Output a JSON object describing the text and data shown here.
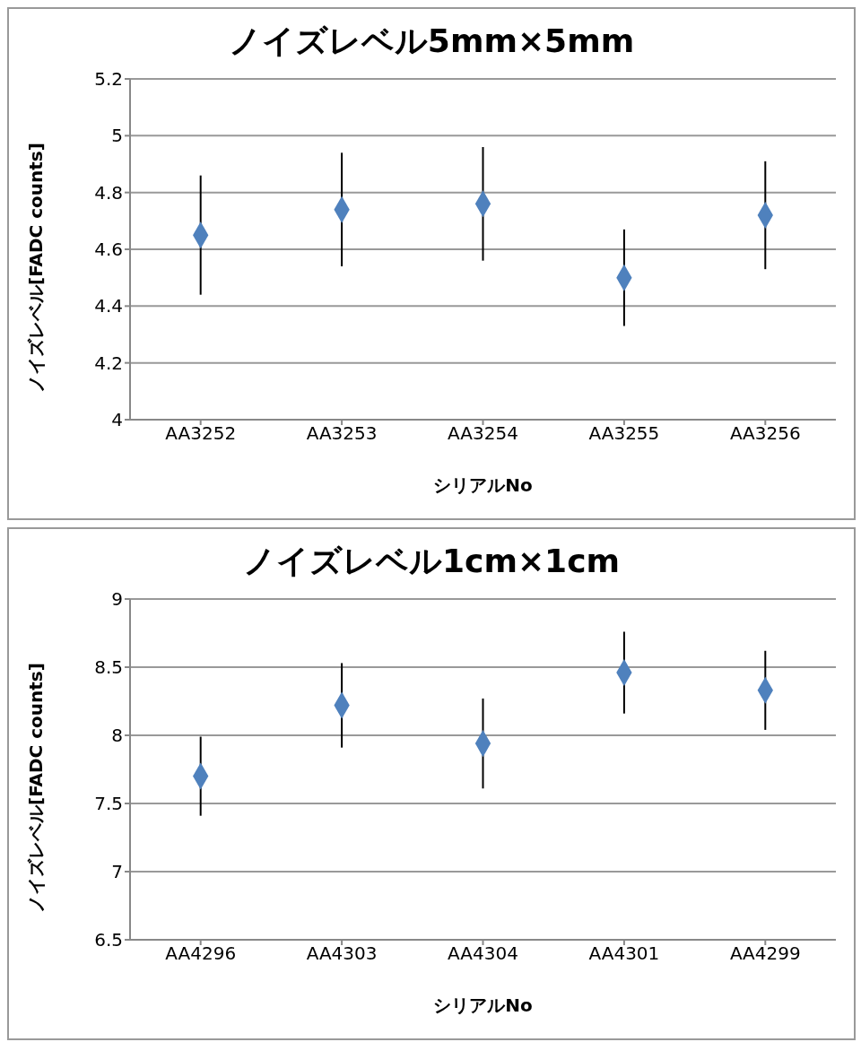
{
  "chart_data": [
    {
      "type": "scatter",
      "title": "ノイズレベル5mm×5mm",
      "xlabel": "シリアルNo",
      "ylabel": "ノイズレベル[FADC counts]",
      "categories": [
        "AA3252",
        "AA3253",
        "AA3254",
        "AA3255",
        "AA3256"
      ],
      "values": [
        4.65,
        4.74,
        4.76,
        4.5,
        4.72
      ],
      "errors": [
        0.21,
        0.2,
        0.2,
        0.17,
        0.19
      ],
      "color": "#4f81bd",
      "marker": "diamond",
      "ylim": [
        4,
        5.2
      ],
      "yticks": [
        4,
        4.2,
        4.4,
        4.6,
        4.8,
        5,
        5.2
      ],
      "grid": "y",
      "legend": false
    },
    {
      "type": "scatter",
      "title": "ノイズレベル1cm×1cm",
      "xlabel": "シリアルNo",
      "ylabel": "ノイズレベル[FADC counts]",
      "categories": [
        "AA4296",
        "AA4303",
        "AA4304",
        "AA4301",
        "AA4299"
      ],
      "values": [
        7.7,
        8.22,
        7.94,
        8.46,
        8.33
      ],
      "errors": [
        0.29,
        0.31,
        0.33,
        0.3,
        0.29
      ],
      "color": "#4f81bd",
      "marker": "diamond",
      "ylim": [
        6.5,
        9
      ],
      "yticks": [
        6.5,
        7,
        7.5,
        8,
        8.5,
        9
      ],
      "grid": "y",
      "legend": false
    }
  ]
}
